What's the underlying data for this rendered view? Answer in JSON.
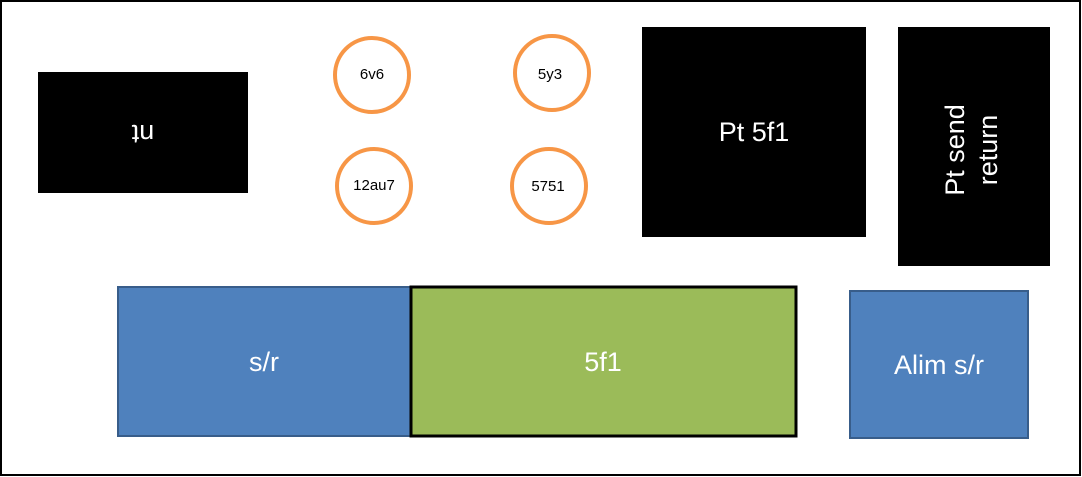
{
  "nodes": [
    {
      "label": "nt"
    },
    {
      "label": "6v6"
    },
    {
      "label": "5y3"
    },
    {
      "label": "12au7"
    },
    {
      "label": "5751"
    },
    {
      "label": "Pt 5f1"
    },
    {
      "label": [
        "Pt send",
        "return"
      ]
    },
    {
      "label": "s/r"
    },
    {
      "label": "5f1"
    },
    {
      "label": "Alim s/r"
    }
  ]
}
